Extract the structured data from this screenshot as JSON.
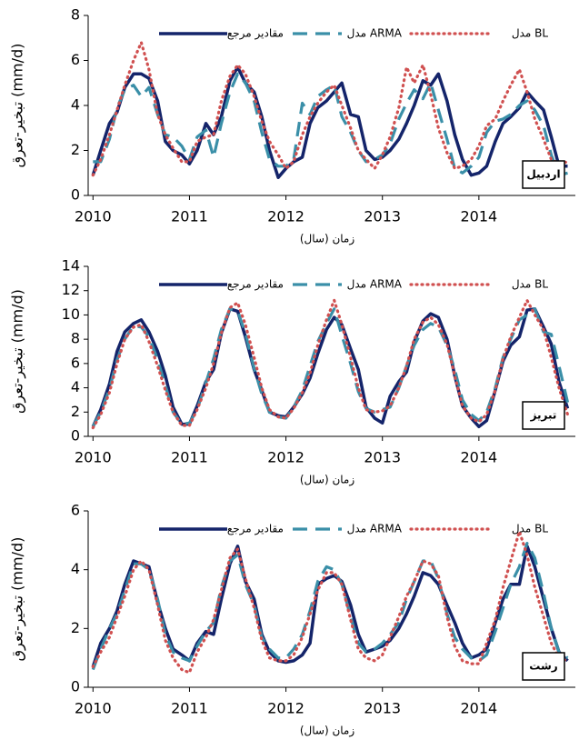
{
  "chart_data": [
    {
      "type": "line",
      "annotation": "اردبیل",
      "y_label": "تبخیر-تعرق (mm/d)",
      "x_label": "زمان (سال)",
      "xlim": [
        2009.95,
        2015
      ],
      "xticks": [
        2010,
        2011,
        2012,
        2013,
        2014
      ],
      "ylim": [
        0,
        8
      ],
      "yticks": [
        0,
        2,
        4,
        6,
        8
      ],
      "x": [
        2010,
        2010.08,
        2010.17,
        2010.25,
        2010.33,
        2010.42,
        2010.5,
        2010.58,
        2010.67,
        2010.75,
        2010.83,
        2010.92,
        2011,
        2011.08,
        2011.17,
        2011.25,
        2011.33,
        2011.42,
        2011.5,
        2011.58,
        2011.67,
        2011.75,
        2011.83,
        2011.92,
        2012,
        2012.08,
        2012.17,
        2012.25,
        2012.33,
        2012.42,
        2012.5,
        2012.58,
        2012.67,
        2012.75,
        2012.83,
        2012.92,
        2013,
        2013.08,
        2013.17,
        2013.25,
        2013.33,
        2013.42,
        2013.5,
        2013.58,
        2013.67,
        2013.75,
        2013.83,
        2013.92,
        2014,
        2014.08,
        2014.17,
        2014.25,
        2014.33,
        2014.42,
        2014.5,
        2014.58,
        2014.67,
        2014.75,
        2014.83,
        2014.92
      ],
      "series": [
        {
          "name": "مقادیر مرجع",
          "color": "#14246a",
          "style": "solid",
          "values": [
            0.9,
            2.0,
            3.2,
            3.7,
            4.8,
            5.4,
            5.4,
            5.2,
            4.2,
            2.4,
            2.0,
            1.8,
            1.4,
            2.0,
            3.2,
            2.7,
            3.5,
            5.1,
            5.7,
            5.0,
            4.6,
            3.5,
            2.0,
            0.8,
            1.2,
            1.5,
            1.7,
            3.2,
            3.9,
            4.2,
            4.6,
            5.0,
            3.6,
            3.5,
            2.0,
            1.6,
            1.7,
            2.0,
            2.5,
            3.2,
            4.0,
            5.1,
            4.9,
            5.4,
            4.2,
            2.7,
            1.6,
            0.9,
            1.0,
            1.3,
            2.4,
            3.2,
            3.5,
            3.9,
            4.6,
            4.2,
            3.8,
            2.6,
            1.3,
            1.3
          ]
        },
        {
          "name": "مدل ARMA",
          "color": "#3a8fa8",
          "style": "dashed",
          "values": [
            1.5,
            1.5,
            2.5,
            3.9,
            4.7,
            4.9,
            4.4,
            4.8,
            3.6,
            2.7,
            2.6,
            2.2,
            1.6,
            2.6,
            2.9,
            1.7,
            3.2,
            4.6,
            5.4,
            5.0,
            4.2,
            2.8,
            1.6,
            1.3,
            1.3,
            1.6,
            4.1,
            3.6,
            4.4,
            4.7,
            4.9,
            3.5,
            2.8,
            2.0,
            1.5,
            1.6,
            1.8,
            2.3,
            3.4,
            4.1,
            4.7,
            4.3,
            5.0,
            3.8,
            2.5,
            1.2,
            1.0,
            1.3,
            1.7,
            2.8,
            3.3,
            3.4,
            3.6,
            4.0,
            4.2,
            3.8,
            3.1,
            1.8,
            0.9,
            1.0
          ]
        },
        {
          "name": "مدل BL",
          "color": "#d05050",
          "style": "dotted",
          "values": [
            0.9,
            1.6,
            2.7,
            3.8,
            4.9,
            6.0,
            6.8,
            5.6,
            3.6,
            2.7,
            2.1,
            1.5,
            1.5,
            2.4,
            2.6,
            2.7,
            4.2,
            5.3,
            5.8,
            5.4,
            4.4,
            3.3,
            2.4,
            1.8,
            1.2,
            1.5,
            2.7,
            3.5,
            4.1,
            4.6,
            4.9,
            4.0,
            3.0,
            2.0,
            1.6,
            1.2,
            1.8,
            2.6,
            3.9,
            5.7,
            5.0,
            5.8,
            4.5,
            3.0,
            1.9,
            1.2,
            1.3,
            1.6,
            2.2,
            3.1,
            3.4,
            4.2,
            4.9,
            5.6,
            4.6,
            3.4,
            2.5,
            1.6,
            1.4,
            1.5
          ]
        }
      ]
    },
    {
      "type": "line",
      "annotation": "تبریز",
      "y_label": "تبخیر-تعرق (mm/d)",
      "x_label": "زمان (سال)",
      "xlim": [
        2009.95,
        2015
      ],
      "xticks": [
        2010,
        2011,
        2012,
        2013,
        2014
      ],
      "ylim": [
        0,
        14
      ],
      "yticks": [
        0,
        2,
        4,
        6,
        8,
        10,
        12,
        14
      ],
      "x": [
        2010,
        2010.08,
        2010.17,
        2010.25,
        2010.33,
        2010.42,
        2010.5,
        2010.58,
        2010.67,
        2010.75,
        2010.83,
        2010.92,
        2011,
        2011.08,
        2011.17,
        2011.25,
        2011.33,
        2011.42,
        2011.5,
        2011.58,
        2011.67,
        2011.75,
        2011.83,
        2011.92,
        2012,
        2012.08,
        2012.17,
        2012.25,
        2012.33,
        2012.42,
        2012.5,
        2012.58,
        2012.67,
        2012.75,
        2012.83,
        2012.92,
        2013,
        2013.08,
        2013.17,
        2013.25,
        2013.33,
        2013.42,
        2013.5,
        2013.58,
        2013.67,
        2013.75,
        2013.83,
        2013.92,
        2014,
        2014.08,
        2014.17,
        2014.25,
        2014.33,
        2014.42,
        2014.5,
        2014.58,
        2014.67,
        2014.75,
        2014.83,
        2014.92
      ],
      "series": [
        {
          "name": "مقادیر مرجع",
          "color": "#14246a",
          "style": "solid",
          "values": [
            0.8,
            2.2,
            4.3,
            7.0,
            8.6,
            9.3,
            9.6,
            8.6,
            7.0,
            5.0,
            2.4,
            1.0,
            1.0,
            2.5,
            4.5,
            5.5,
            8.5,
            10.5,
            10.3,
            8.2,
            5.5,
            3.8,
            2.0,
            1.7,
            1.6,
            2.4,
            3.5,
            4.8,
            6.8,
            8.8,
            9.8,
            9.2,
            7.2,
            5.5,
            2.4,
            1.5,
            1.1,
            3.3,
            4.5,
            5.3,
            7.8,
            9.5,
            10.1,
            9.8,
            8.0,
            5.0,
            2.5,
            1.5,
            0.8,
            1.3,
            3.8,
            6.2,
            7.5,
            8.2,
            10.4,
            10.5,
            9.0,
            7.6,
            4.5,
            2.3
          ]
        },
        {
          "name": "مدل ARMA",
          "color": "#3a8fa8",
          "style": "dashed",
          "values": [
            0.8,
            2.0,
            3.9,
            6.3,
            8.0,
            9.1,
            9.0,
            8.2,
            6.3,
            4.2,
            2.0,
            1.0,
            1.1,
            2.2,
            4.4,
            6.4,
            8.8,
            10.5,
            10.3,
            8.5,
            5.6,
            3.5,
            2.0,
            1.6,
            1.5,
            2.4,
            3.8,
            5.8,
            7.8,
            9.3,
            10.5,
            8.3,
            6.0,
            3.7,
            2.3,
            2.0,
            2.2,
            2.4,
            4.0,
            5.8,
            7.5,
            8.8,
            9.3,
            9.0,
            7.5,
            5.5,
            3.0,
            1.8,
            1.3,
            2.0,
            4.0,
            6.5,
            8.0,
            9.6,
            10.0,
            10.5,
            8.6,
            8.4,
            5.8,
            2.8
          ]
        },
        {
          "name": "مدل BL",
          "color": "#d05050",
          "style": "dotted",
          "values": [
            0.7,
            1.8,
            3.6,
            6.0,
            8.0,
            9.0,
            9.2,
            7.8,
            5.8,
            3.8,
            2.0,
            0.9,
            0.9,
            2.2,
            4.0,
            6.0,
            8.5,
            10.6,
            11.0,
            9.2,
            6.5,
            4.0,
            2.2,
            1.6,
            1.5,
            2.3,
            3.6,
            5.2,
            7.5,
            9.6,
            11.2,
            9.2,
            6.5,
            4.0,
            2.2,
            2.0,
            2.1,
            2.5,
            4.0,
            5.8,
            8.0,
            9.4,
            9.8,
            9.2,
            7.6,
            5.0,
            2.5,
            1.5,
            1.2,
            1.8,
            3.8,
            6.4,
            8.2,
            9.8,
            11.2,
            10.0,
            8.8,
            6.5,
            4.0,
            1.8
          ]
        }
      ]
    },
    {
      "type": "line",
      "annotation": "رشت",
      "y_label": "تبخیر-تعرق (mm/d)",
      "x_label": "زمان (سال)",
      "xlim": [
        2009.95,
        2015
      ],
      "xticks": [
        2010,
        2011,
        2012,
        2013,
        2014
      ],
      "ylim": [
        0,
        6
      ],
      "yticks": [
        0,
        2,
        4,
        6
      ],
      "x": [
        2010,
        2010.08,
        2010.17,
        2010.25,
        2010.33,
        2010.42,
        2010.5,
        2010.58,
        2010.67,
        2010.75,
        2010.83,
        2010.92,
        2011,
        2011.08,
        2011.17,
        2011.25,
        2011.33,
        2011.42,
        2011.5,
        2011.58,
        2011.67,
        2011.75,
        2011.83,
        2011.92,
        2012,
        2012.08,
        2012.17,
        2012.25,
        2012.33,
        2012.42,
        2012.5,
        2012.58,
        2012.67,
        2012.75,
        2012.83,
        2012.92,
        2013,
        2013.08,
        2013.17,
        2013.25,
        2013.33,
        2013.42,
        2013.5,
        2013.58,
        2013.67,
        2013.75,
        2013.83,
        2013.92,
        2014,
        2014.08,
        2014.17,
        2014.25,
        2014.33,
        2014.42,
        2014.5,
        2014.58,
        2014.67,
        2014.75,
        2014.83,
        2014.92
      ],
      "series": [
        {
          "name": "مقادیر مرجع",
          "color": "#14246a",
          "style": "solid",
          "values": [
            0.7,
            1.5,
            2.0,
            2.6,
            3.5,
            4.3,
            4.2,
            4.1,
            2.9,
            2.0,
            1.3,
            1.1,
            0.9,
            1.5,
            1.9,
            1.8,
            3.0,
            4.2,
            4.8,
            3.6,
            3.0,
            1.8,
            1.2,
            0.9,
            0.85,
            0.9,
            1.1,
            1.5,
            3.5,
            3.7,
            3.8,
            3.6,
            2.8,
            1.8,
            1.2,
            1.3,
            1.4,
            1.6,
            2.0,
            2.5,
            3.1,
            3.9,
            3.8,
            3.5,
            2.8,
            2.2,
            1.5,
            1.0,
            1.1,
            1.3,
            2.2,
            3.0,
            3.5,
            3.5,
            4.8,
            4.1,
            3.0,
            2.0,
            1.2,
            0.9
          ]
        },
        {
          "name": "مدل ARMA",
          "color": "#3a8fa8",
          "style": "dashed",
          "values": [
            0.6,
            1.3,
            2.0,
            2.5,
            3.3,
            4.2,
            4.2,
            4.0,
            3.0,
            1.8,
            1.2,
            1.0,
            0.9,
            1.4,
            1.9,
            2.2,
            3.4,
            4.3,
            4.5,
            3.5,
            2.8,
            1.7,
            1.3,
            1.0,
            1.0,
            1.3,
            1.8,
            2.6,
            3.6,
            4.1,
            4.0,
            3.5,
            2.4,
            1.5,
            1.2,
            1.3,
            1.5,
            1.8,
            2.2,
            3.0,
            3.6,
            4.3,
            4.3,
            3.7,
            2.5,
            1.7,
            1.3,
            1.0,
            0.9,
            1.1,
            1.9,
            2.7,
            3.5,
            4.1,
            4.9,
            4.4,
            3.2,
            2.0,
            1.2,
            1.0
          ]
        },
        {
          "name": "مدل BL",
          "color": "#d05050",
          "style": "dotted",
          "values": [
            0.7,
            1.2,
            1.7,
            2.4,
            3.1,
            4.0,
            4.3,
            4.0,
            2.8,
            1.6,
            1.0,
            0.6,
            0.5,
            1.2,
            1.7,
            2.3,
            3.3,
            4.4,
            4.7,
            3.7,
            2.7,
            1.6,
            1.0,
            0.9,
            0.9,
            1.1,
            1.7,
            2.5,
            3.3,
            3.9,
            3.9,
            3.5,
            2.3,
            1.3,
            1.0,
            0.9,
            1.1,
            1.7,
            2.4,
            3.1,
            3.6,
            4.3,
            4.2,
            3.8,
            2.4,
            1.4,
            0.9,
            0.8,
            0.8,
            1.5,
            2.3,
            3.4,
            4.3,
            5.3,
            4.5,
            3.4,
            2.4,
            1.5,
            1.0,
            0.9
          ]
        }
      ]
    }
  ]
}
